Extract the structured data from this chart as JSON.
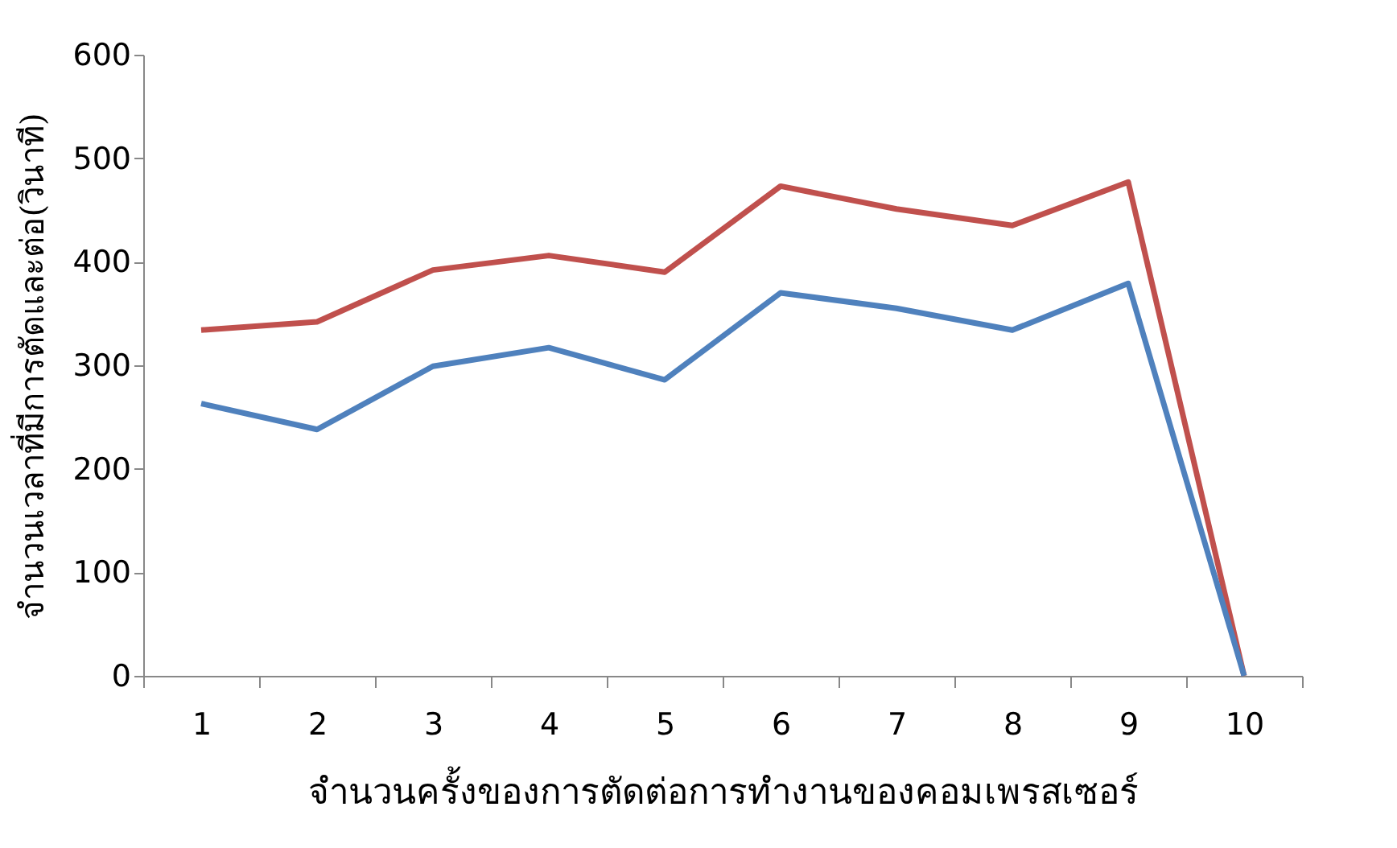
{
  "chart_data": {
    "type": "line",
    "xlabel": "จำนวนครั้งของการตัดต่อการทำงานของคอมเพรสเซอร์",
    "ylabel": "จำนวนเวลาที่มีการตัดและต่อ(วินาที)",
    "categories": [
      "1",
      "2",
      "3",
      "4",
      "5",
      "6",
      "7",
      "8",
      "9",
      "10"
    ],
    "series": [
      {
        "color": "#c0504d",
        "values": [
          334,
          342,
          392,
          406,
          390,
          473,
          451,
          435,
          477,
          0
        ]
      },
      {
        "color": "#4f81bd",
        "values": [
          263,
          238,
          299,
          317,
          286,
          370,
          355,
          334,
          379,
          0
        ]
      }
    ],
    "ylim": [
      0,
      600
    ],
    "yticks": [
      0,
      100,
      200,
      300,
      400,
      500,
      600
    ],
    "grid": false,
    "legend": false,
    "marker": "none",
    "line_style": "solid"
  }
}
